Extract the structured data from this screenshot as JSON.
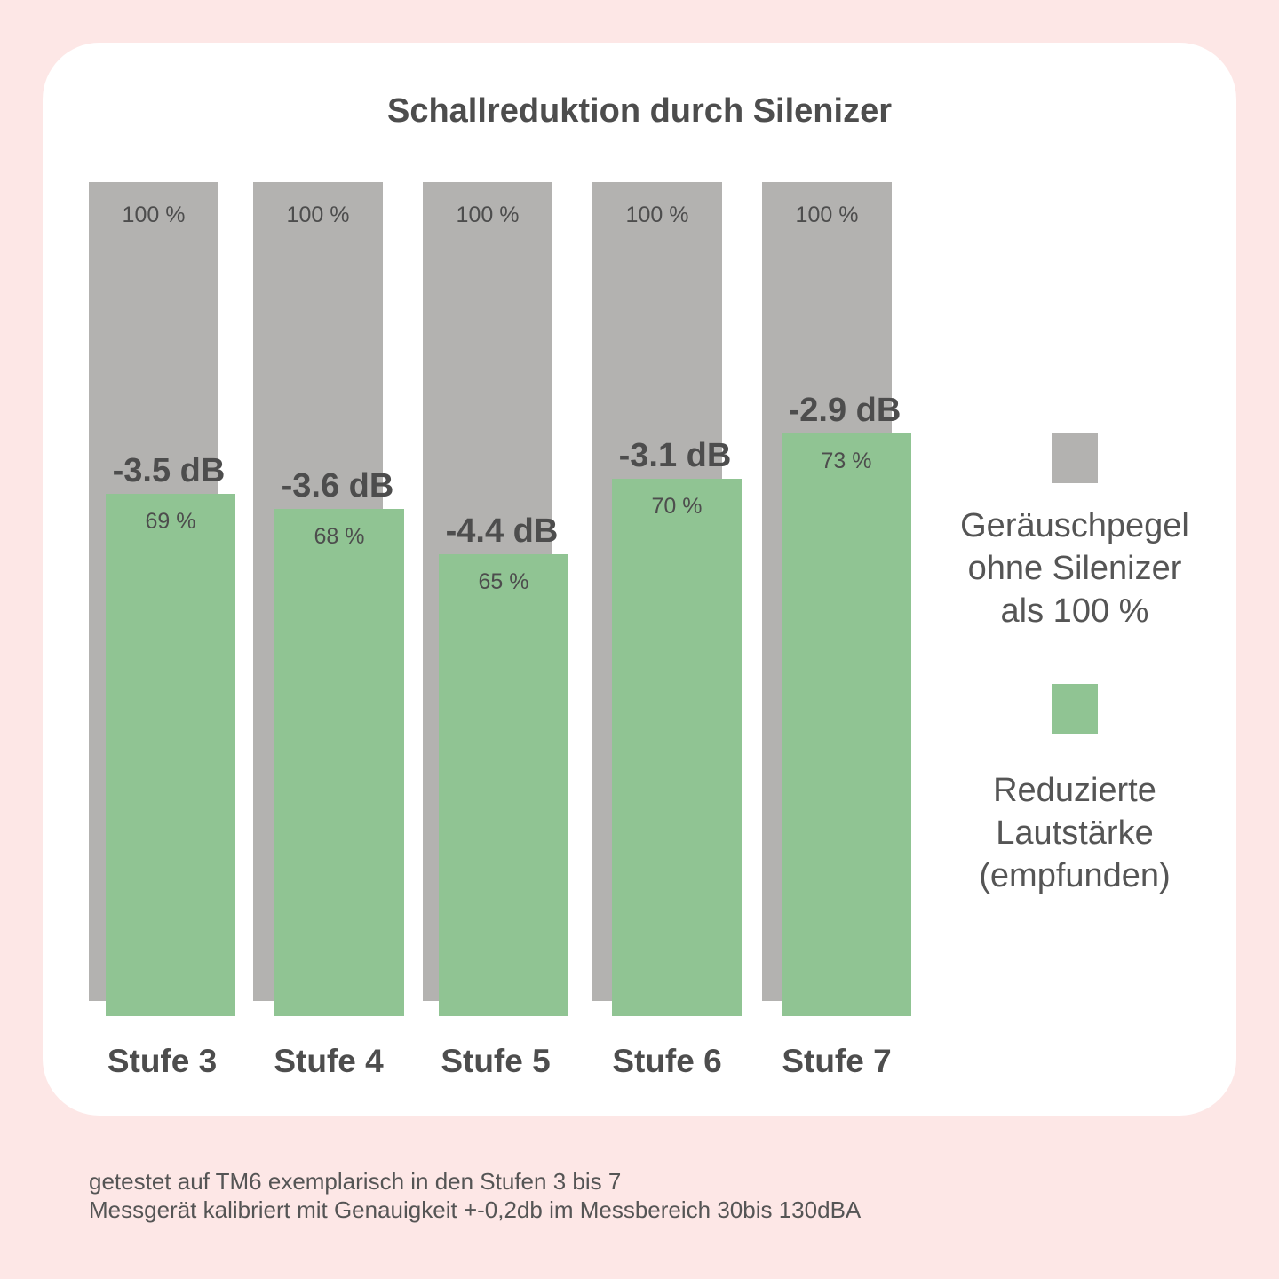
{
  "chart_data": {
    "type": "bar",
    "title": "Schallreduktion durch Silenizer",
    "categories": [
      "Stufe 3",
      "Stufe 4",
      "Stufe 5",
      "Stufe 6",
      "Stufe 7"
    ],
    "series": [
      {
        "name": "Geräuschpegel ohne Silenizer als 100 %",
        "values": [
          100,
          100,
          100,
          100,
          100
        ],
        "labels": [
          "100 %",
          "100 %",
          "100 %",
          "100 %",
          "100 %"
        ],
        "color": "#b3b2b0"
      },
      {
        "name": "Reduzierte Lautstärke (empfunden)",
        "values": [
          69,
          68,
          65,
          70,
          73
        ],
        "labels": [
          "69 %",
          "68 %",
          "65 %",
          "70 %",
          "73 %"
        ],
        "color": "#90c493"
      }
    ],
    "annotations": [
      "-3.5 dB",
      "-3.6 dB",
      "-4.4 dB",
      "-3.1 dB",
      "-2.9 dB"
    ],
    "ylim": [
      0,
      100
    ],
    "grid": false,
    "legend_position": "right"
  },
  "legend": {
    "gray_lines": [
      "Geräuschpegel",
      "ohne Silenizer",
      "als 100 %"
    ],
    "green_lines": [
      "Reduzierte",
      "Lautstärke",
      "(empfunden)"
    ]
  },
  "footnote": {
    "line1": "getestet auf TM6 exemplarisch in den Stufen 3 bis 7",
    "line2": "Messgerät kalibriert mit Genauigkeit +-0,2db im Messbereich 30bis 130dBA"
  }
}
